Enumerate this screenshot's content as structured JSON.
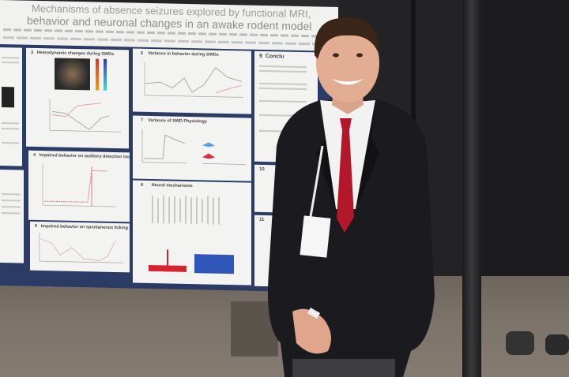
{
  "poster": {
    "title_line1": "Mechanisms of absence seizures explored by functional MRI,",
    "title_line2": "behavior and neuronal changes in an awake rodent model",
    "panels": [
      {
        "number": "3",
        "title": "Hemodynamic changes during SWDs"
      },
      {
        "number": "4",
        "title": "Impaired behavior on auditory detection task"
      },
      {
        "number": "5",
        "title": "Impaired behavior on spontaneous licking task"
      },
      {
        "number": "6",
        "title": "Variance in behavior during SWDs"
      },
      {
        "number": "7",
        "title": "Variance of SWD Physiology"
      },
      {
        "number": "8",
        "title": "Neural mechanisms"
      },
      {
        "number": "9",
        "title": "Conclu"
      },
      {
        "number": "10",
        "title": ""
      },
      {
        "number": "11",
        "title": ""
      }
    ]
  },
  "colors": {
    "poster_border": "#2c3a66",
    "tie": "#b3172a",
    "suit": "#1b1b1f",
    "histogram_red": "#d8232f",
    "histogram_blue": "#2f56b8"
  }
}
